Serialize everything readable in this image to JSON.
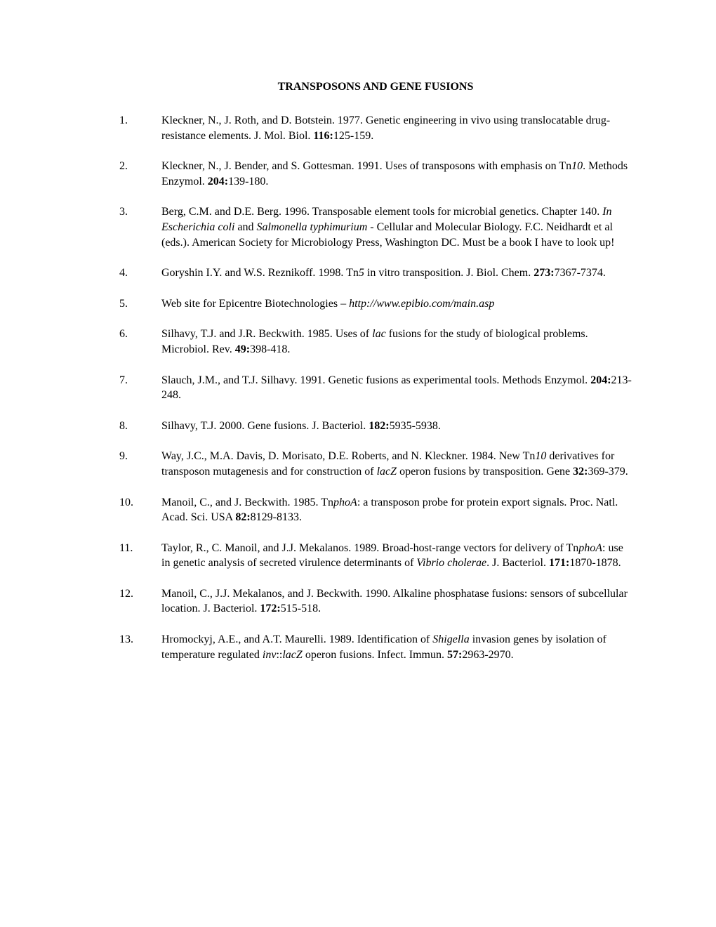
{
  "title": "TRANSPOSONS AND GENE FUSIONS",
  "refs": [
    {
      "num": "1.",
      "parts": [
        {
          "t": "Kleckner, N., J. Roth, and D. Botstein. 1977. Genetic engineering in vivo using translocatable drug-resistance elements. J. Mol. Biol. "
        },
        {
          "t": "116:",
          "b": true
        },
        {
          "t": "125-159."
        }
      ]
    },
    {
      "num": "2.",
      "parts": [
        {
          "t": "Kleckner, N., J. Bender, and S. Gottesman.  1991.  Uses of transposons with emphasis on Tn"
        },
        {
          "t": "10",
          "i": true
        },
        {
          "t": ".  Methods Enzymol.  "
        },
        {
          "t": "204:",
          "b": true
        },
        {
          "t": "139-180."
        }
      ]
    },
    {
      "num": "3.",
      "parts": [
        {
          "t": "Berg, C.M. and D.E. Berg.  1996.  Transposable element tools for microbial genetics.  Chapter 140.  "
        },
        {
          "t": "In Escherichia coli",
          "i": true
        },
        {
          "t": " and "
        },
        {
          "t": "Salmonella typhimurium",
          "i": true
        },
        {
          "t": " - Cellular and Molecular Biology.  F.C. Neidhardt et al (eds.). American Society for Microbiology Press, Washington DC. Must be a book I have to look up!"
        }
      ]
    },
    {
      "num": "4.",
      "parts": [
        {
          "t": "Goryshin I.Y. and W.S. Reznikoff.  1998.  Tn"
        },
        {
          "t": "5",
          "i": true
        },
        {
          "t": " in vitro transposition.  J. Biol. Chem. "
        },
        {
          "t": "273:",
          "b": true
        },
        {
          "t": "7367-7374."
        }
      ]
    },
    {
      "num": "5.",
      "parts": [
        {
          "t": "Web site for Epicentre Biotechnologies – "
        },
        {
          "t": "http://www.epibio.com/main.asp",
          "i": true
        }
      ]
    },
    {
      "num": "6.",
      "parts": [
        {
          "t": "Silhavy, T.J. and J.R. Beckwith. 1985. Uses of "
        },
        {
          "t": "lac",
          "i": true
        },
        {
          "t": " fusions for the study of biological problems.  Microbiol. Rev. "
        },
        {
          "t": "49:",
          "b": true
        },
        {
          "t": "398-418."
        }
      ]
    },
    {
      "num": "7.",
      "parts": [
        {
          "t": "Slauch, J.M., and T.J. Silhavy. 1991. Genetic fusions as experimental tools. Methods Enzymol. "
        },
        {
          "t": "204:",
          "b": true
        },
        {
          "t": "213-248."
        }
      ]
    },
    {
      "num": "8.",
      "parts": [
        {
          "t": "Silhavy, T.J. 2000. Gene fusions. J. Bacteriol. "
        },
        {
          "t": "182:",
          "b": true
        },
        {
          "t": "5935-5938."
        }
      ]
    },
    {
      "num": "9.",
      "parts": [
        {
          "t": "Way, J.C., M.A. Davis, D. Morisato, D.E. Roberts, and N. Kleckner. 1984. New Tn"
        },
        {
          "t": "10",
          "i": true
        },
        {
          "t": " derivatives for transposon mutagenesis and for construction of "
        },
        {
          "t": "lacZ",
          "i": true
        },
        {
          "t": " operon fusions by transposition. Gene "
        },
        {
          "t": "32:",
          "b": true
        },
        {
          "t": "369-379."
        }
      ]
    },
    {
      "num": "10.",
      "parts": [
        {
          "t": "Manoil, C., and J. Beckwith. 1985. Tn"
        },
        {
          "t": "phoA",
          "i": true
        },
        {
          "t": ": a transposon probe for protein export signals. Proc. Natl. Acad. Sci. USA "
        },
        {
          "t": "82:",
          "b": true
        },
        {
          "t": "8129-8133."
        }
      ]
    },
    {
      "num": "11.",
      "parts": [
        {
          "t": "Taylor, R., C. Manoil, and J.J. Mekalanos. 1989. Broad-host-range vectors for delivery of Tn"
        },
        {
          "t": "phoA",
          "i": true
        },
        {
          "t": ": use in genetic analysis of secreted virulence determinants of "
        },
        {
          "t": "Vibrio cholerae",
          "i": true
        },
        {
          "t": ". J. Bacteriol. "
        },
        {
          "t": "171:",
          "b": true
        },
        {
          "t": "1870-1878."
        }
      ]
    },
    {
      "num": "12.",
      "parts": [
        {
          "t": "Manoil, C., J.J. Mekalanos, and J. Beckwith. 1990. Alkaline phosphatase fusions: sensors of subcellular location.  J. Bacteriol. "
        },
        {
          "t": "172:",
          "b": true
        },
        {
          "t": "515-518."
        }
      ]
    },
    {
      "num": "13.",
      "parts": [
        {
          "t": "Hromockyj, A.E., and A.T. Maurelli. 1989. Identification of "
        },
        {
          "t": "Shigella",
          "i": true
        },
        {
          "t": " invasion genes by isolation of temperature regulated "
        },
        {
          "t": "inv",
          "i": true
        },
        {
          "t": "::"
        },
        {
          "t": "lacZ",
          "i": true
        },
        {
          "t": " operon fusions. Infect. Immun. "
        },
        {
          "t": "57:",
          "b": true
        },
        {
          "t": "2963-2970."
        }
      ]
    }
  ]
}
